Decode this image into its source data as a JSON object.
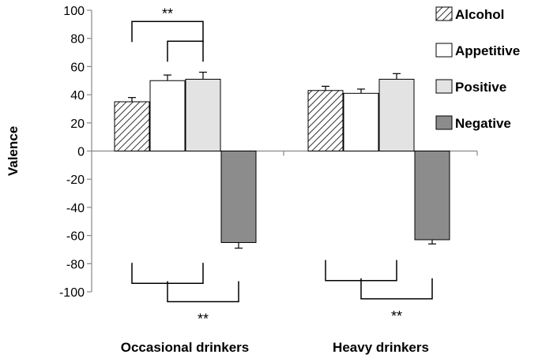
{
  "chart_data": {
    "type": "bar",
    "title": "",
    "xlabel": "",
    "ylabel": "Valence",
    "ylim": [
      -100,
      100
    ],
    "yticks": [
      100,
      80,
      60,
      40,
      20,
      0,
      -20,
      -40,
      -60,
      -80,
      -100
    ],
    "grid": false,
    "legend_position": "right",
    "categories": [
      "Occasional drinkers",
      "Heavy drinkers"
    ],
    "series": [
      {
        "name": "Alcohol",
        "values": [
          35,
          43
        ],
        "errors": [
          3,
          3
        ],
        "color": "#ffffff",
        "pattern": "hatch"
      },
      {
        "name": "Appetitive",
        "values": [
          50,
          41
        ],
        "errors": [
          4,
          3
        ],
        "color": "#ffffff",
        "pattern": "solid"
      },
      {
        "name": "Positive",
        "values": [
          51,
          51
        ],
        "errors": [
          5,
          4
        ],
        "color": "#e3e3e3",
        "pattern": "solid"
      },
      {
        "name": "Negative",
        "values": [
          -65,
          -63
        ],
        "errors": [
          4,
          3
        ],
        "color": "#8c8c8c",
        "pattern": "solid"
      }
    ],
    "annotations": [
      {
        "text": "**",
        "category": 0,
        "from_series": 0,
        "to_series": 2,
        "side": "above",
        "y": 92
      },
      {
        "text": "",
        "category": 0,
        "from_series": 1,
        "to_series": 2,
        "side": "above",
        "y": 78
      },
      {
        "text": "",
        "category": 0,
        "from_series": 0,
        "to_series": 2,
        "side": "below",
        "y": -94
      },
      {
        "text": "**",
        "category": 0,
        "from_series": 1,
        "to_series": 3,
        "side": "below",
        "y": -107
      },
      {
        "text": "",
        "category": 1,
        "from_series": 0,
        "to_series": 2,
        "side": "below",
        "y": -92
      },
      {
        "text": "**",
        "category": 1,
        "from_series": 1,
        "to_series": 3,
        "side": "below",
        "y": -105
      }
    ]
  }
}
